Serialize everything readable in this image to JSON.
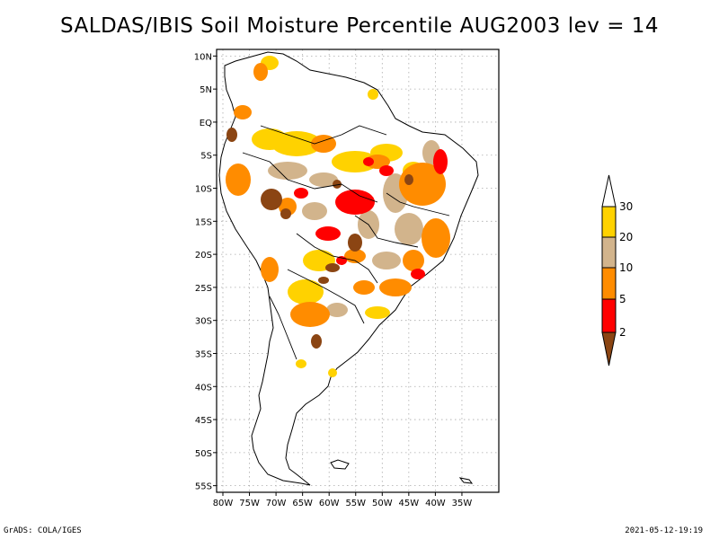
{
  "title": "SALDAS/IBIS Soil Moisture Percentile AUG2003 lev = 14",
  "footer": {
    "left": "GrADS: COLA/IGES",
    "right": "2021-05-12-19:19"
  },
  "map": {
    "lon_range": [
      -80,
      -30
    ],
    "lat_range": [
      -56,
      11
    ],
    "x_ticks": [
      "80W",
      "75W",
      "70W",
      "65W",
      "60W",
      "55W",
      "50W",
      "45W",
      "40W",
      "35W"
    ],
    "y_ticks": [
      "10N",
      "5N",
      "EQ",
      "5S",
      "10S",
      "15S",
      "20S",
      "25S",
      "30S",
      "35S",
      "40S",
      "45S",
      "50S",
      "55S"
    ],
    "grid": true
  },
  "legend": {
    "labels": [
      "30",
      "20",
      "10",
      "5",
      "2"
    ],
    "bins": [
      {
        "range": "> 30",
        "color": "#ffffff"
      },
      {
        "range": "20-30",
        "color": "#ffd200"
      },
      {
        "range": "10-20",
        "color": "#d2b48c"
      },
      {
        "range": "5-10",
        "color": "#ff8c00"
      },
      {
        "range": "2-5",
        "color": "#ff0000"
      },
      {
        "range": "< 2",
        "color": "#8b4513"
      }
    ]
  },
  "colors": {
    "gold": "#ffd200",
    "tan": "#d2b48c",
    "orange": "#ff8c00",
    "red": "#ff0000",
    "brown": "#8b4513"
  }
}
